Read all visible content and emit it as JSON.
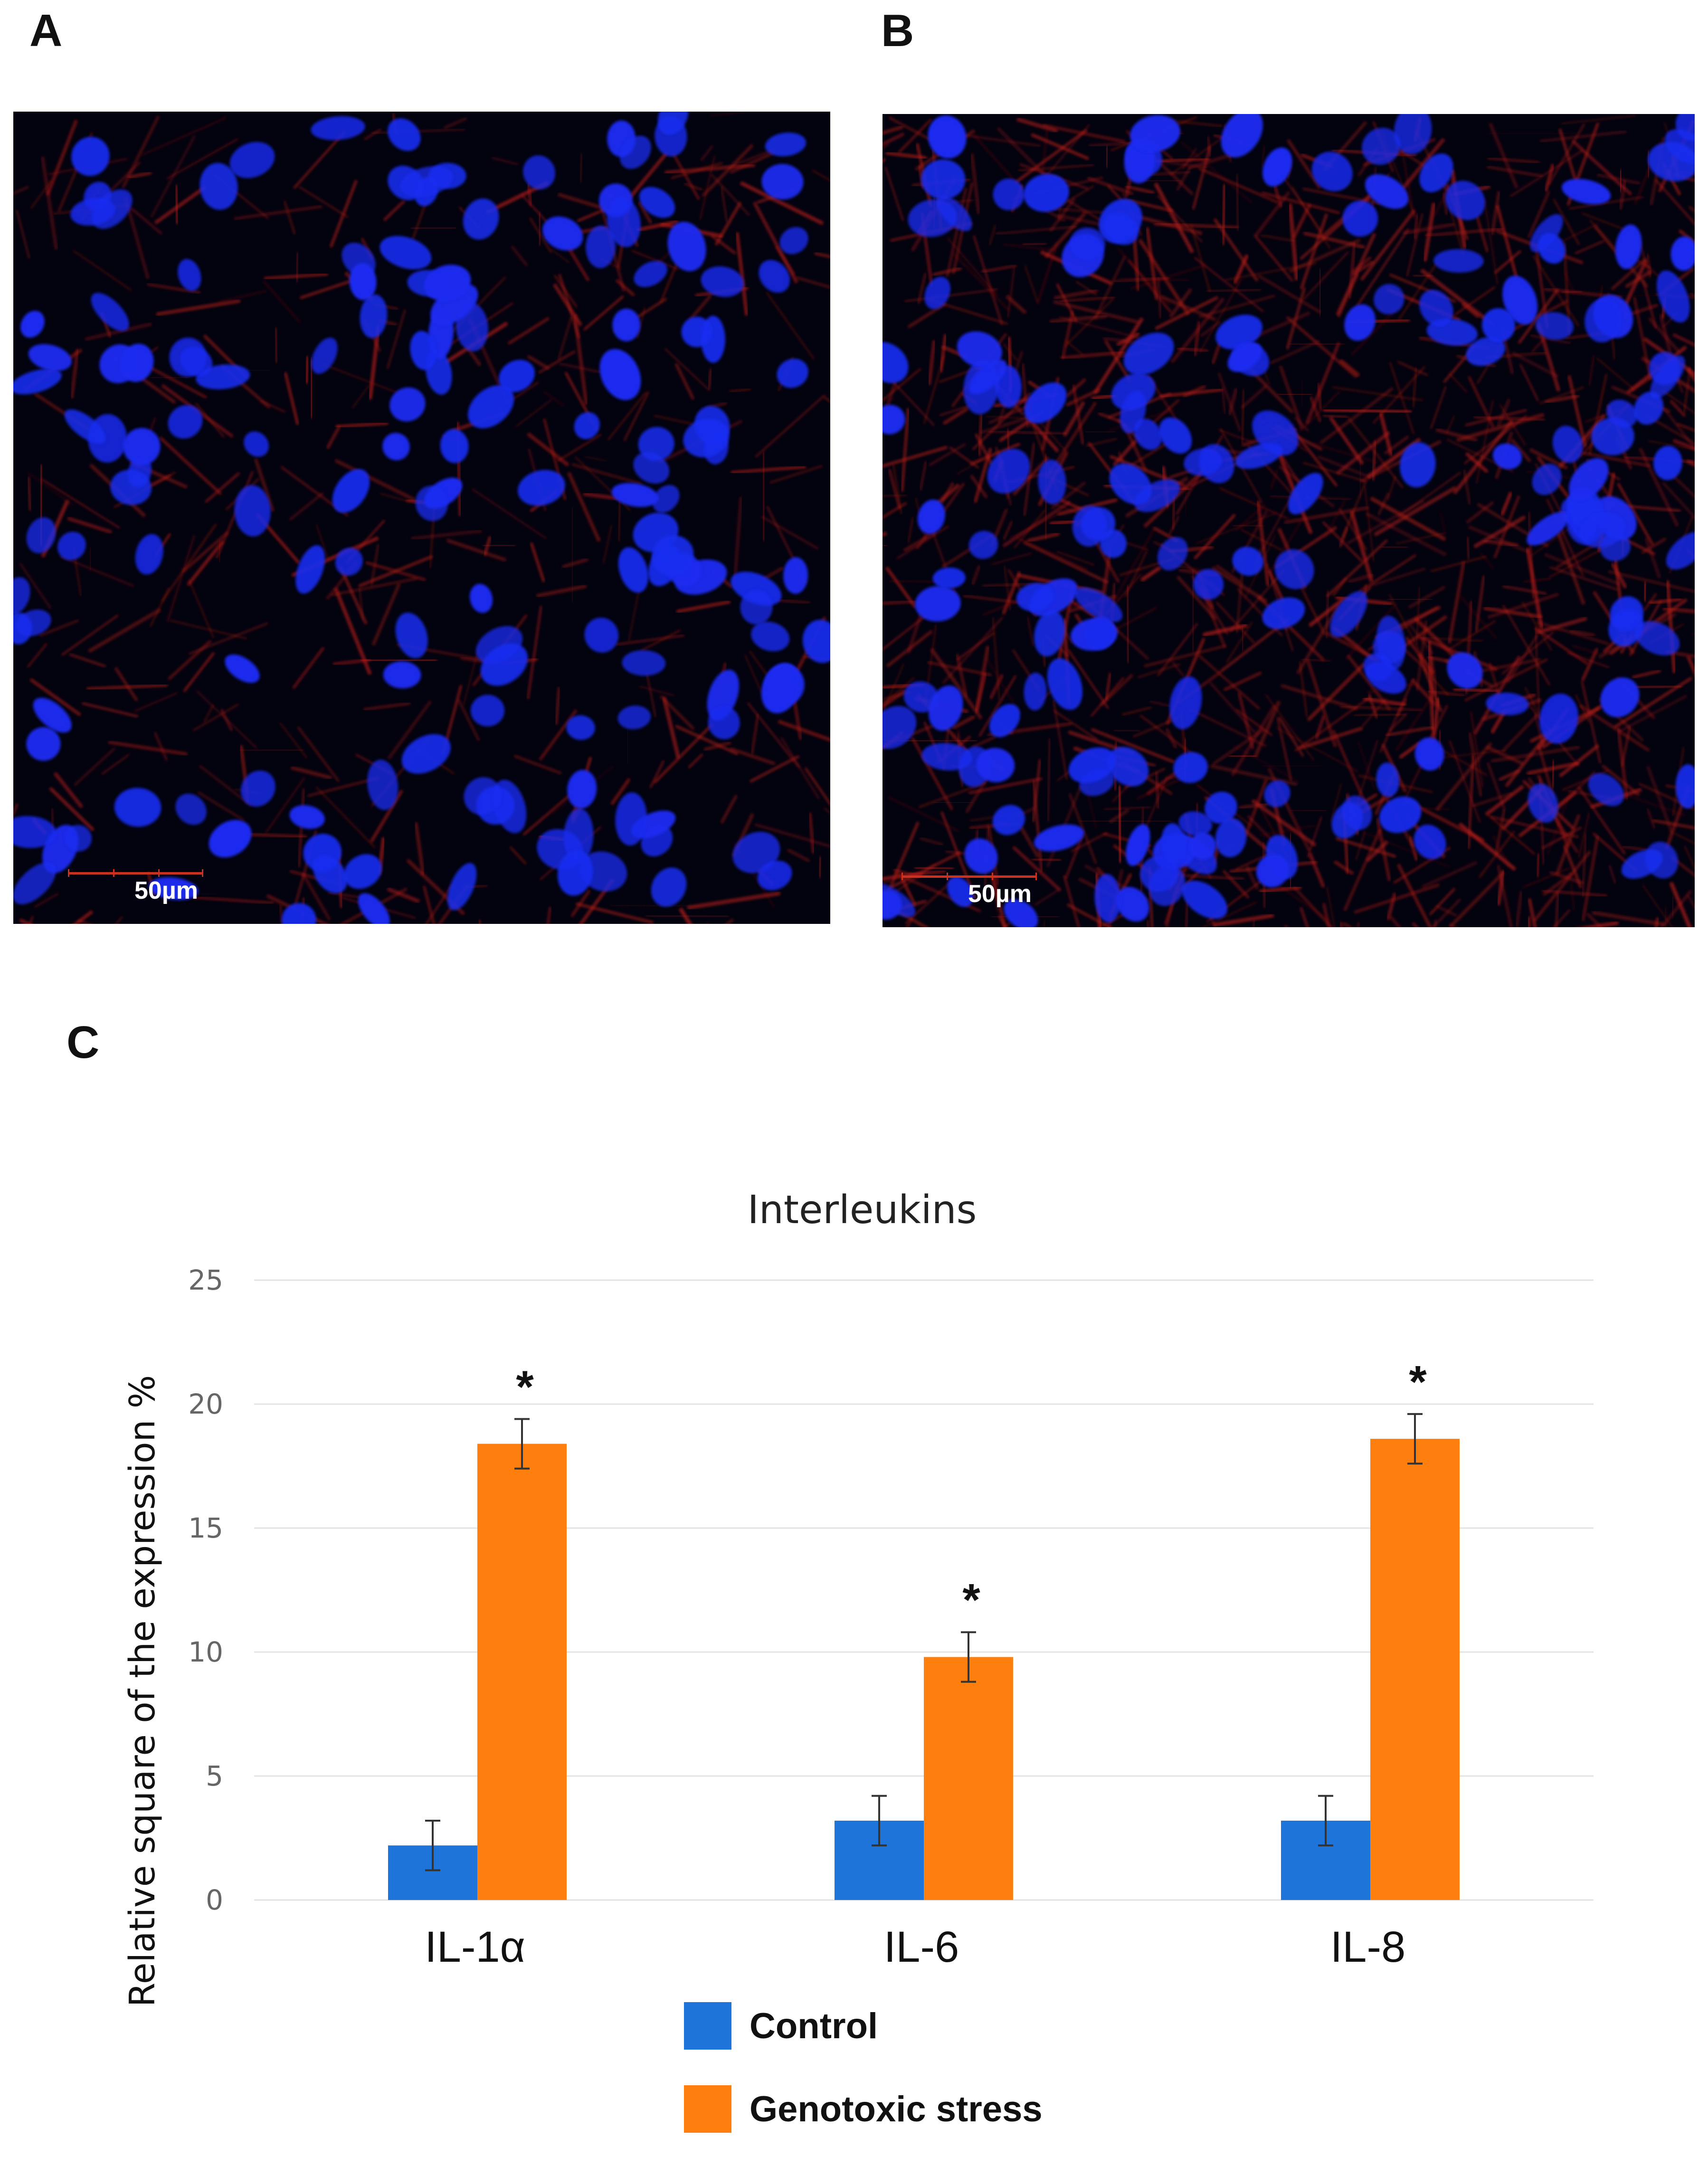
{
  "panels": {
    "a": {
      "letter": "A",
      "scale_label": "50µm"
    },
    "b": {
      "letter": "B",
      "scale_label": "50µm"
    },
    "c": {
      "letter": "C"
    }
  },
  "colors": {
    "control": "#1f74d9",
    "stress": "#ff7f0e",
    "nuclei": "#1a2cf0",
    "stain": "#d2231a",
    "grid": "#e3e3e3"
  },
  "chart_data": {
    "type": "bar",
    "title": "Interleukins",
    "xlabel": "",
    "ylabel": "Relative square of the expression  %",
    "ylim": [
      0,
      25
    ],
    "yticks": [
      0,
      5,
      10,
      15,
      20,
      25
    ],
    "categories": [
      "IL-1α",
      "IL-6",
      "IL-8"
    ],
    "series": [
      {
        "name": "Control",
        "values": [
          2.2,
          3.2,
          3.2
        ],
        "errors": [
          1.0,
          1.0,
          1.0
        ]
      },
      {
        "name": "Genotoxic stress",
        "values": [
          18.4,
          9.8,
          18.6
        ],
        "errors": [
          1.0,
          1.0,
          1.0
        ]
      }
    ],
    "annotations": [
      "*",
      "*",
      "*"
    ],
    "legend": "bottom-center"
  }
}
